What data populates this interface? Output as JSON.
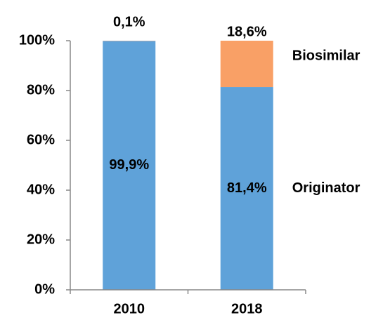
{
  "chart_data": {
    "type": "stacked-bar",
    "categories": [
      "2010",
      "2018"
    ],
    "series": [
      {
        "name": "Originator",
        "color": "#5fa2d9",
        "values": [
          99.9,
          81.4
        ],
        "value_labels": [
          "99,9%",
          "81,4%"
        ]
      },
      {
        "name": "Biosimilar",
        "color": "#f9a066",
        "values": [
          0.1,
          18.6
        ],
        "value_labels": [
          "0,1%",
          "18,6%"
        ]
      }
    ],
    "ylim": [
      0,
      100
    ],
    "yticks": [
      {
        "value": 0,
        "label": "0%"
      },
      {
        "value": 20,
        "label": "20%"
      },
      {
        "value": 40,
        "label": "40%"
      },
      {
        "value": 60,
        "label": "60%"
      },
      {
        "value": 80,
        "label": "80%"
      },
      {
        "value": 100,
        "label": "100%"
      }
    ]
  }
}
